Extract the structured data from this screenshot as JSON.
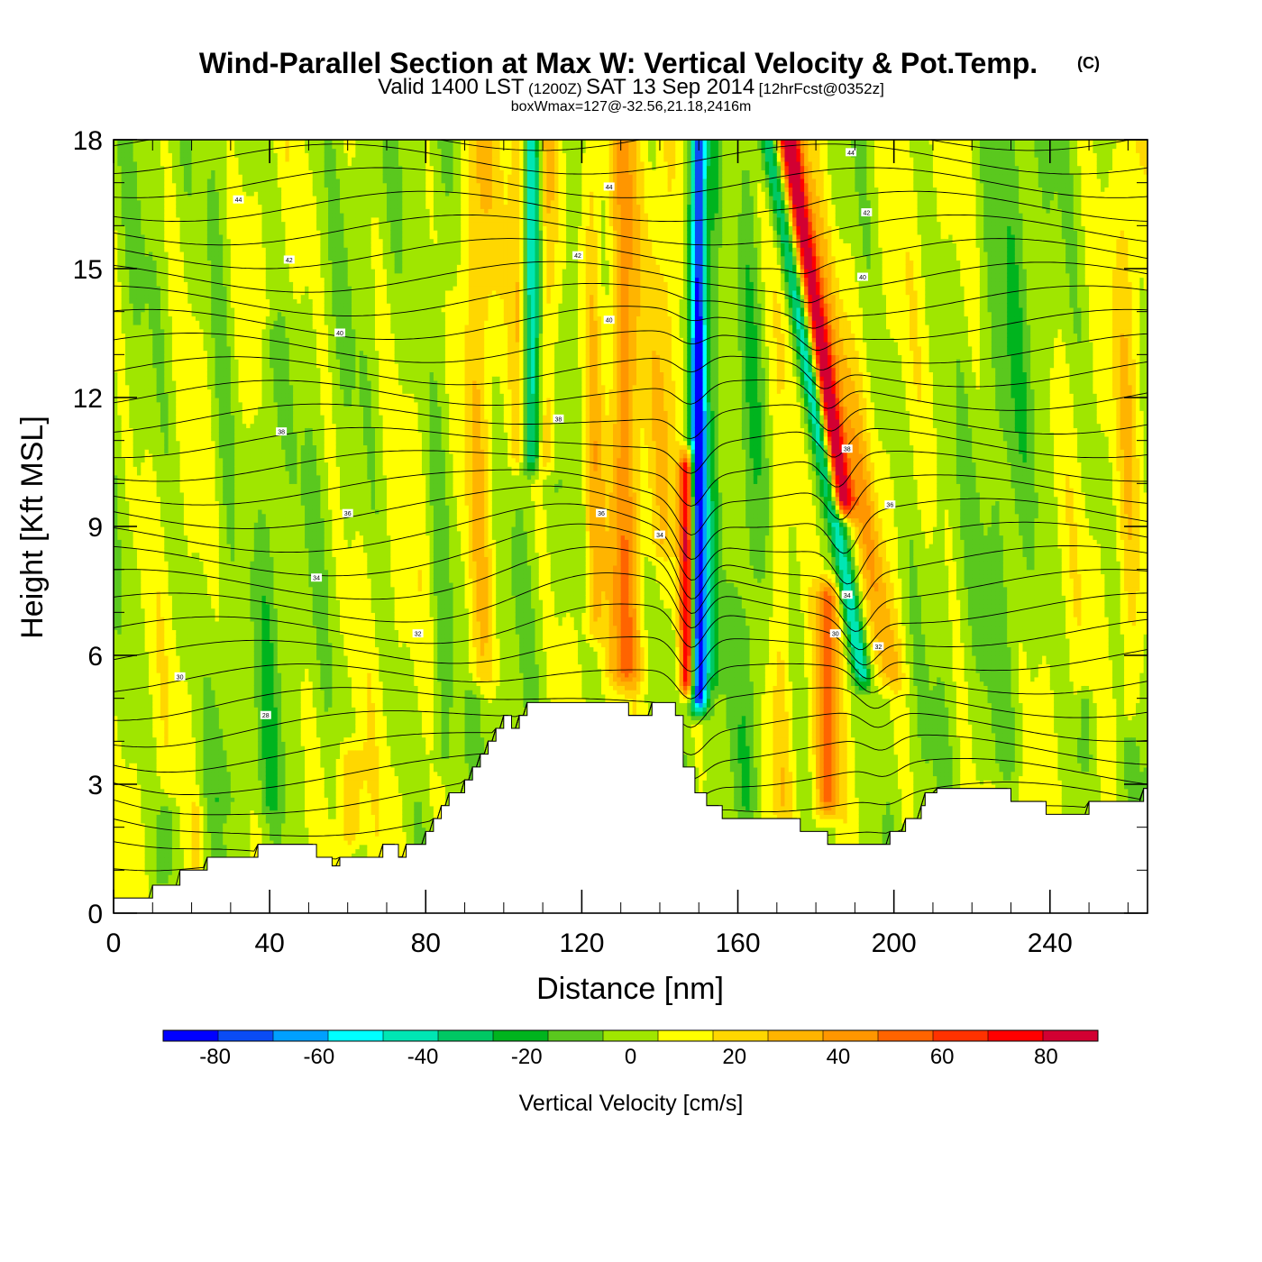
{
  "chart_data": {
    "type": "heatmap",
    "title": "Wind-Parallel Section at Max W: Vertical Velocity & Pot.Temp.",
    "title_mark": "(C)",
    "subtitle": {
      "valid_prefix": "Valid 1400 LST",
      "utc": "(1200Z)",
      "date": "SAT 13 Sep 2014",
      "forecast": "[12hrFcst@0352z]"
    },
    "annotation": "boxWmax=127@-32.56,21.18,2416m",
    "xlabel": "Distance [nm]",
    "ylabel": "Height [Kft MSL]",
    "xlim": [
      0,
      265
    ],
    "ylim": [
      0,
      18
    ],
    "x_ticks": [
      "0",
      "40",
      "80",
      "120",
      "160",
      "200",
      "240"
    ],
    "x_tick_values": [
      0,
      40,
      80,
      120,
      160,
      200,
      240
    ],
    "y_ticks": [
      "0",
      "3",
      "6",
      "9",
      "12",
      "15",
      "18"
    ],
    "y_tick_values": [
      0,
      3,
      6,
      9,
      12,
      15,
      18
    ],
    "colorbar": {
      "label": "Vertical Velocity [cm/s]",
      "ticks": [
        "-80",
        "-60",
        "-40",
        "-20",
        "0",
        "20",
        "40",
        "60",
        "80"
      ],
      "tick_values": [
        -80,
        -60,
        -40,
        -20,
        0,
        20,
        40,
        60,
        80
      ],
      "range": [
        -90,
        90
      ],
      "colors": [
        "#0000ff",
        "#0a4cf5",
        "#00a0ff",
        "#00ffff",
        "#00e6b4",
        "#00c864",
        "#00b41e",
        "#5ac81e",
        "#a0e600",
        "#ffff00",
        "#ffd700",
        "#ffb400",
        "#ff9600",
        "#ff6400",
        "#ff3200",
        "#ff0000",
        "#d20032"
      ]
    },
    "terrain_kft": [
      [
        0,
        0.35
      ],
      [
        10,
        0.35
      ],
      [
        10,
        0.65
      ],
      [
        17,
        0.65
      ],
      [
        17,
        1.0
      ],
      [
        24,
        1.0
      ],
      [
        24,
        1.3
      ],
      [
        37,
        1.3
      ],
      [
        37,
        1.6
      ],
      [
        52,
        1.6
      ],
      [
        52,
        1.3
      ],
      [
        56,
        1.3
      ],
      [
        56,
        1.1
      ],
      [
        58,
        1.1
      ],
      [
        58,
        1.3
      ],
      [
        69,
        1.3
      ],
      [
        69,
        1.6
      ],
      [
        73,
        1.6
      ],
      [
        73,
        1.3
      ],
      [
        75,
        1.3
      ],
      [
        75,
        1.6
      ],
      [
        80,
        1.6
      ],
      [
        80,
        1.9
      ],
      [
        82,
        1.9
      ],
      [
        82,
        2.2
      ],
      [
        84,
        2.2
      ],
      [
        84,
        2.5
      ],
      [
        86,
        2.5
      ],
      [
        86,
        2.8
      ],
      [
        90,
        2.8
      ],
      [
        90,
        3.1
      ],
      [
        92,
        3.1
      ],
      [
        92,
        3.4
      ],
      [
        94,
        3.4
      ],
      [
        94,
        3.7
      ],
      [
        96,
        3.7
      ],
      [
        96,
        4.0
      ],
      [
        98,
        4.0
      ],
      [
        98,
        4.3
      ],
      [
        100,
        4.3
      ],
      [
        100,
        4.6
      ],
      [
        102,
        4.6
      ],
      [
        102,
        4.3
      ],
      [
        104,
        4.3
      ],
      [
        104,
        4.6
      ],
      [
        106,
        4.6
      ],
      [
        106,
        4.9
      ],
      [
        132,
        4.9
      ],
      [
        132,
        4.6
      ],
      [
        138,
        4.6
      ],
      [
        138,
        4.9
      ],
      [
        144,
        4.9
      ],
      [
        144,
        4.6
      ],
      [
        146,
        4.6
      ],
      [
        146,
        3.4
      ],
      [
        149,
        3.4
      ],
      [
        149,
        2.8
      ],
      [
        152,
        2.8
      ],
      [
        152,
        2.5
      ],
      [
        156,
        2.5
      ],
      [
        156,
        2.2
      ],
      [
        176,
        2.2
      ],
      [
        176,
        1.9
      ],
      [
        183,
        1.9
      ],
      [
        183,
        1.6
      ],
      [
        199,
        1.6
      ],
      [
        199,
        1.9
      ],
      [
        203,
        1.9
      ],
      [
        203,
        2.2
      ],
      [
        207,
        2.2
      ],
      [
        207,
        2.5
      ],
      [
        208,
        2.5
      ],
      [
        208,
        2.8
      ],
      [
        211,
        2.8
      ],
      [
        211,
        2.9
      ],
      [
        230,
        2.9
      ],
      [
        230,
        2.6
      ],
      [
        239,
        2.6
      ],
      [
        239,
        2.3
      ],
      [
        250,
        2.3
      ],
      [
        250,
        2.6
      ],
      [
        264,
        2.6
      ],
      [
        264,
        2.9
      ],
      [
        265,
        2.9
      ]
    ],
    "w_features": [
      {
        "x": 150,
        "w": 2.2,
        "amp": -95,
        "z0": 4.4,
        "z1": 18,
        "slope": 0
      },
      {
        "x": 147,
        "w": 1.9,
        "amp": 80,
        "z0": 4.8,
        "z1": 11,
        "slope": 0
      },
      {
        "x": 154,
        "w": 1.6,
        "amp": -20,
        "z0": 5,
        "z1": 18,
        "slope": 0
      },
      {
        "x": 141,
        "w": 3.5,
        "amp": 16,
        "z0": 8,
        "z1": 18,
        "slope": 0
      },
      {
        "x": 131,
        "w": 4,
        "amp": 38,
        "z0": 5,
        "z1": 18,
        "slope": 0
      },
      {
        "x": 123,
        "w": 2.5,
        "amp": 25,
        "z0": 6,
        "z1": 18,
        "slope": 0
      },
      {
        "x": 107,
        "w": 2.4,
        "amp": -55,
        "z0": 10,
        "z1": 18,
        "slope": 0
      },
      {
        "x": 104,
        "w": 2.6,
        "amp": 28,
        "z0": 10,
        "z1": 18,
        "slope": 0
      },
      {
        "x": 111,
        "w": 2.6,
        "amp": 28,
        "z0": 10,
        "z1": 18,
        "slope": 0
      },
      {
        "x": 94,
        "w": 3.5,
        "amp": 22,
        "z0": 5,
        "z1": 18,
        "slope": 0
      },
      {
        "x": 84,
        "w": 3,
        "amp": -12,
        "z0": 3,
        "z1": 18,
        "slope": 0
      },
      {
        "x": 188,
        "w": 2.6,
        "amp": 95,
        "z0": 9,
        "z1": 18,
        "slope": -1.65
      },
      {
        "x": 193,
        "w": 2.4,
        "amp": -45,
        "z0": 5,
        "z1": 18,
        "slope": -1.95
      },
      {
        "x": 200,
        "w": 3.5,
        "amp": 25,
        "z0": 5,
        "z1": 18,
        "slope": -1.8
      },
      {
        "x": 183,
        "w": 2.8,
        "amp": 45,
        "z0": 2,
        "z1": 8,
        "slope": 0
      },
      {
        "x": 171,
        "w": 3,
        "amp": 15,
        "z0": 2,
        "z1": 18,
        "slope": 0
      },
      {
        "x": 163,
        "w": 3,
        "amp": -12,
        "z0": 2,
        "z1": 18,
        "slope": 0
      },
      {
        "x": 61,
        "w": 3,
        "amp": 22,
        "z0": 1.3,
        "z1": 4.2,
        "slope": 0
      },
      {
        "x": 21,
        "w": 1.5,
        "amp": 14,
        "z0": 0.6,
        "z1": 3,
        "slope": 0
      },
      {
        "x": 14,
        "w": 2.5,
        "amp": -18,
        "z0": 0.5,
        "z1": 3,
        "slope": 0
      },
      {
        "x": 40,
        "w": 3,
        "amp": -12,
        "z0": 2,
        "z1": 14,
        "slope": 0
      },
      {
        "x": 28,
        "w": 4,
        "amp": -10,
        "z0": 2,
        "z1": 18,
        "slope": 0
      },
      {
        "x": 230,
        "w": 6,
        "amp": -10,
        "z0": 3,
        "z1": 18,
        "slope": 0
      },
      {
        "x": 249,
        "w": 2,
        "amp": -20,
        "z0": 3,
        "z1": 5.5,
        "slope": 0
      },
      {
        "x": 260,
        "w": 3,
        "amp": 15,
        "z0": 4,
        "z1": 18,
        "slope": 0
      }
    ],
    "theta_contour_labels": [
      {
        "text": "44",
        "x": 32,
        "z": 16.6
      },
      {
        "text": "42",
        "x": 45,
        "z": 15.2
      },
      {
        "text": "40",
        "x": 58,
        "z": 13.5
      },
      {
        "text": "38",
        "x": 43,
        "z": 11.2
      },
      {
        "text": "36",
        "x": 60,
        "z": 9.3
      },
      {
        "text": "34",
        "x": 52,
        "z": 7.8
      },
      {
        "text": "32",
        "x": 78,
        "z": 6.5
      },
      {
        "text": "30",
        "x": 17,
        "z": 5.5
      },
      {
        "text": "28",
        "x": 39,
        "z": 4.6
      },
      {
        "text": "44",
        "x": 127,
        "z": 16.9
      },
      {
        "text": "42",
        "x": 119,
        "z": 15.3
      },
      {
        "text": "40",
        "x": 127,
        "z": 13.8
      },
      {
        "text": "38",
        "x": 114,
        "z": 11.5
      },
      {
        "text": "36",
        "x": 125,
        "z": 9.3
      },
      {
        "text": "34",
        "x": 140,
        "z": 8.8
      },
      {
        "text": "44",
        "x": 189,
        "z": 17.7
      },
      {
        "text": "42",
        "x": 193,
        "z": 16.3
      },
      {
        "text": "40",
        "x": 192,
        "z": 14.8
      },
      {
        "text": "38",
        "x": 188,
        "z": 10.8
      },
      {
        "text": "36",
        "x": 199,
        "z": 9.5
      },
      {
        "text": "34",
        "x": 188,
        "z": 7.4
      },
      {
        "text": "32",
        "x": 196,
        "z": 6.2
      },
      {
        "text": "30",
        "x": 185,
        "z": 6.5
      }
    ]
  }
}
